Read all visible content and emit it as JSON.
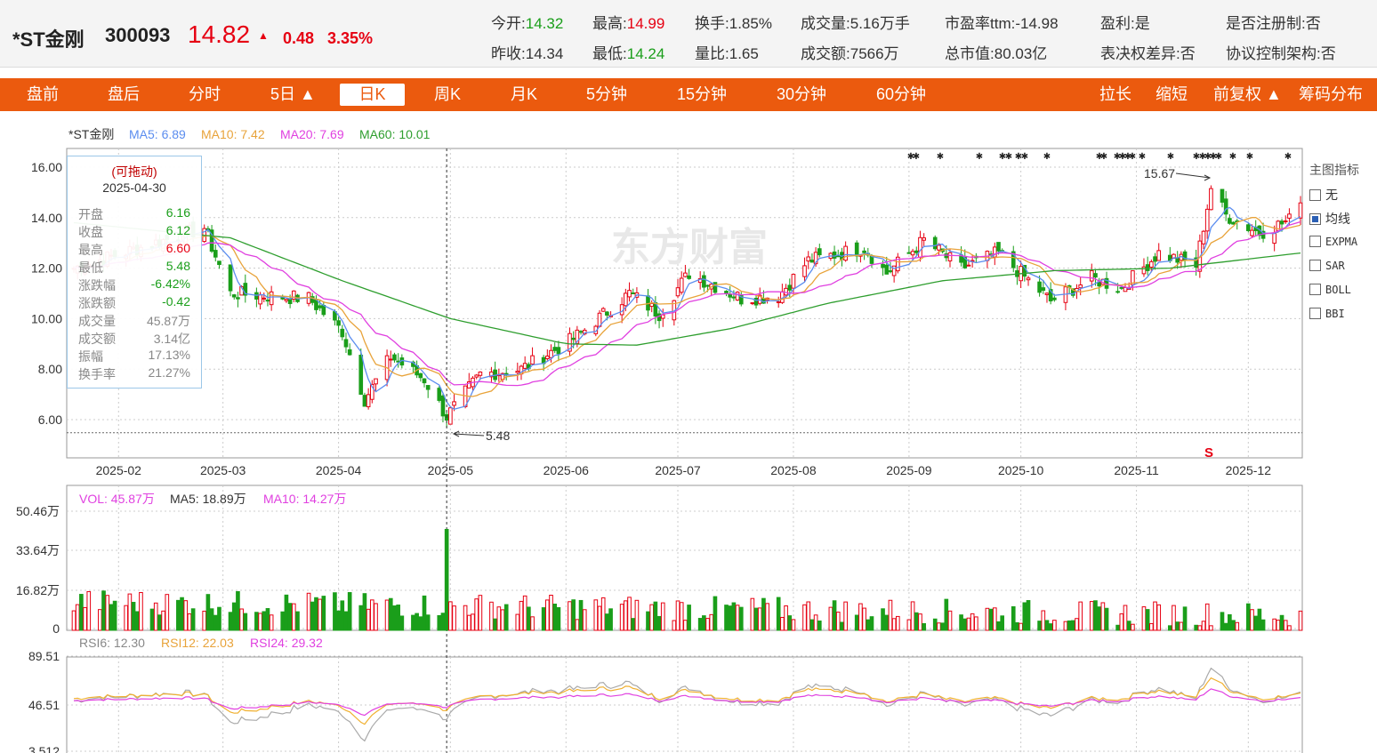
{
  "quote": {
    "name": "*ST金刚",
    "code": "300093",
    "price": "14.82",
    "arrow": "▲",
    "change": "0.48",
    "change_pct": "3.35%",
    "fields": [
      {
        "label": "今开:",
        "value": "14.32",
        "color": "green"
      },
      {
        "label": "最高:",
        "value": "14.99",
        "color": "red"
      },
      {
        "label": "换手:",
        "value": "1.85%",
        "color": ""
      },
      {
        "label": "成交量:",
        "value": "5.16万手",
        "color": ""
      },
      {
        "label": "市盈率ttm:",
        "value": "-14.98",
        "color": ""
      },
      {
        "label": "盈利:",
        "value": "是",
        "color": ""
      },
      {
        "label": "是否注册制:",
        "value": "否",
        "color": ""
      },
      {
        "label": "昨收:",
        "value": "14.34",
        "color": ""
      },
      {
        "label": "最低:",
        "value": "14.24",
        "color": "green"
      },
      {
        "label": "量比:",
        "value": "1.65",
        "color": ""
      },
      {
        "label": "成交额:",
        "value": "7566万",
        "color": ""
      },
      {
        "label": "总市值:",
        "value": "80.03亿",
        "color": ""
      },
      {
        "label": "表决权差异:",
        "value": "否",
        "color": ""
      },
      {
        "label": "协议控制架构:",
        "value": "否",
        "color": ""
      }
    ]
  },
  "nav": {
    "left": [
      "盘前",
      "盘后",
      "分时",
      "5日 ▲",
      "日K",
      "周K",
      "月K",
      "5分钟",
      "15分钟",
      "30分钟",
      "60分钟"
    ],
    "active": "日K",
    "right": [
      "拉长",
      "缩短",
      "前复权 ▲",
      "筹码分布"
    ]
  },
  "main_legend": {
    "name": "*ST金刚",
    "ma5": "MA5: 6.89",
    "ma10": "MA10: 7.42",
    "ma20": "MA20: 7.69",
    "ma60": "MA60: 10.01"
  },
  "vol_legend": {
    "vol": "VOL: 45.87万",
    "ma5": "MA5: 18.89万",
    "ma10": "MA10: 14.27万"
  },
  "rsi_legend": {
    "rsi6": "RSI6: 12.30",
    "rsi12": "RSI12: 22.03",
    "rsi24": "RSI24: 29.32"
  },
  "tooltip": {
    "title": "(可拖动)",
    "date": "2025-04-30",
    "rows": [
      {
        "k": "开盘",
        "v": "6.16",
        "c": "green"
      },
      {
        "k": "收盘",
        "v": "6.12",
        "c": "green"
      },
      {
        "k": "最高",
        "v": "6.60",
        "c": "red"
      },
      {
        "k": "最低",
        "v": "5.48",
        "c": "green"
      },
      {
        "k": "涨跌幅",
        "v": "-6.42%",
        "c": "green"
      },
      {
        "k": "涨跌额",
        "v": "-0.42",
        "c": "green"
      },
      {
        "k": "成交量",
        "v": "45.87万",
        "c": "gray"
      },
      {
        "k": "成交额",
        "v": "3.14亿",
        "c": "gray"
      },
      {
        "k": "振幅",
        "v": "17.13%",
        "c": "gray"
      },
      {
        "k": "换手率",
        "v": "21.27%",
        "c": "gray"
      }
    ]
  },
  "side_panel": {
    "title": "主图指标",
    "items": [
      {
        "label": "无",
        "checked": false
      },
      {
        "label": "均线",
        "checked": true
      },
      {
        "label": "EXPMA",
        "checked": false
      },
      {
        "label": "SAR",
        "checked": false
      },
      {
        "label": "BOLL",
        "checked": false
      },
      {
        "label": "BBI",
        "checked": false
      }
    ]
  },
  "annotations": {
    "high_label": "15.67",
    "low_label": "5.48",
    "sell_marker": "S",
    "watermark": "东方财富"
  },
  "colors": {
    "up": "#e60012",
    "down": "#1a9e1a",
    "ma5": "#5b8def",
    "ma10": "#e8a33a",
    "ma20": "#e040e0",
    "ma60": "#2e9e2e",
    "nav": "#eb5a0e"
  },
  "chart_data": {
    "type": "candlestick",
    "x_ticks": [
      "2025-02",
      "2025-03",
      "2025-04",
      "2025-05",
      "2025-06",
      "2025-07",
      "2025-08",
      "2025-09",
      "2025-10",
      "2025-11",
      "2025-12"
    ],
    "price_axis": [
      "16.00",
      "14.00",
      "12.00",
      "10.00",
      "8.00",
      "6.00"
    ],
    "vol_axis": [
      "50.46万",
      "33.64万",
      "16.82万",
      "0"
    ],
    "rsi_axis": [
      "89.51",
      "46.51",
      "3.512"
    ],
    "close_key": [
      [
        "2025-01-20",
        12.0
      ],
      [
        "2025-02-24",
        13.6
      ],
      [
        "2025-03-03",
        11.0
      ],
      [
        "2025-03-24",
        10.8
      ],
      [
        "2025-04-02",
        9.5
      ],
      [
        "2025-04-08",
        6.8
      ],
      [
        "2025-04-15",
        8.5
      ],
      [
        "2025-04-24",
        7.6
      ],
      [
        "2025-04-30",
        6.12
      ],
      [
        "2025-05-09",
        7.8
      ],
      [
        "2025-05-20",
        8.0
      ],
      [
        "2025-06-03",
        9.2
      ],
      [
        "2025-06-18",
        11.0
      ],
      [
        "2025-06-26",
        10.2
      ],
      [
        "2025-07-04",
        11.8
      ],
      [
        "2025-07-18",
        10.8
      ],
      [
        "2025-07-28",
        10.9
      ],
      [
        "2025-08-05",
        12.3
      ],
      [
        "2025-08-20",
        12.8
      ],
      [
        "2025-08-26",
        11.8
      ],
      [
        "2025-09-05",
        13.1
      ],
      [
        "2025-09-15",
        12.0
      ],
      [
        "2025-09-25",
        12.6
      ],
      [
        "2025-10-09",
        10.7
      ],
      [
        "2025-10-20",
        11.6
      ],
      [
        "2025-10-28",
        11.2
      ],
      [
        "2025-11-07",
        12.6
      ],
      [
        "2025-11-17",
        12.1
      ],
      [
        "2025-11-21",
        15.2
      ],
      [
        "2025-11-25",
        14.1
      ],
      [
        "2025-12-04",
        13.4
      ],
      [
        "2025-12-12",
        13.9
      ],
      [
        "2025-12-15",
        14.82
      ]
    ],
    "ma60_key": [
      [
        "2025-01-20",
        13.8
      ],
      [
        "2025-03-03",
        13.2
      ],
      [
        "2025-04-02",
        11.5
      ],
      [
        "2025-05-01",
        10.0
      ],
      [
        "2025-06-01",
        9.0
      ],
      [
        "2025-06-20",
        8.95
      ],
      [
        "2025-07-15",
        9.6
      ],
      [
        "2025-08-10",
        10.6
      ],
      [
        "2025-09-10",
        11.5
      ],
      [
        "2025-10-10",
        11.9
      ],
      [
        "2025-11-10",
        12.0
      ],
      [
        "2025-12-15",
        12.6
      ]
    ]
  }
}
